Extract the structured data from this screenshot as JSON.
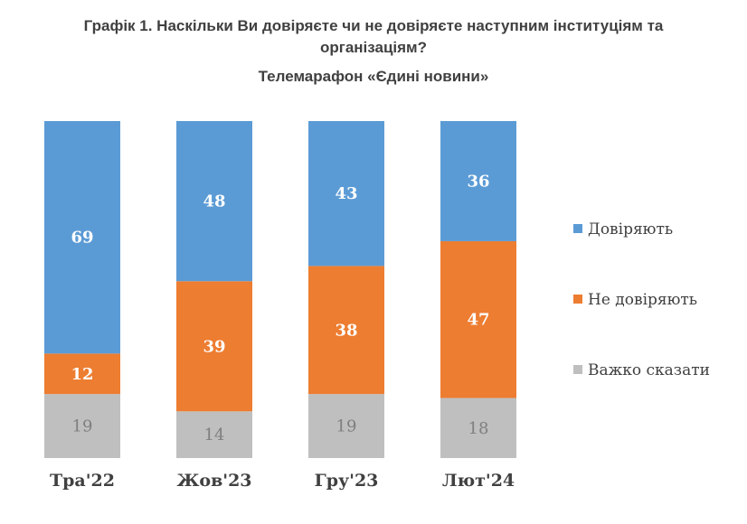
{
  "title": {
    "line1": "Графік 1. Наскільки Ви довіряєте чи не довіряєте наступним інституціям та",
    "line2": "організаціям?",
    "subtitle": "Телемарафон «Єдині новини»"
  },
  "chart_data": {
    "type": "bar",
    "stacked": "100%",
    "categories": [
      "Тра'22",
      "Жов'23",
      "Гру'23",
      "Лют'24"
    ],
    "series": [
      {
        "name": "Важко сказати",
        "values": [
          19,
          14,
          19,
          18
        ],
        "color": "#bfbfbf",
        "label_color": "#7f7f7f"
      },
      {
        "name": "Не довіряють",
        "values": [
          12,
          39,
          38,
          47
        ],
        "color": "#ed7d31",
        "label_color": "#ffffff"
      },
      {
        "name": "Довіряють",
        "values": [
          69,
          48,
          43,
          36
        ],
        "color": "#5b9bd5",
        "label_color": "#ffffff"
      }
    ],
    "legend": {
      "position": "right",
      "order": [
        "Довіряють",
        "Не довіряють",
        "Важко сказати"
      ]
    },
    "grid": false
  }
}
